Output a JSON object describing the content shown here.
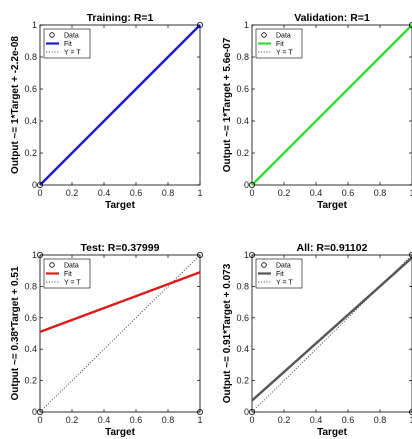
{
  "chart_data": [
    {
      "type": "scatter",
      "title": "Training: R=1",
      "xlabel": "Target",
      "ylabel": "Output ~= 1*Target + -2.2e-08",
      "xlim": [
        0,
        1
      ],
      "ylim": [
        0,
        1
      ],
      "xticks": [
        "0",
        "0.2",
        "0.4",
        "0.6",
        "0.8",
        "1"
      ],
      "yticks": [
        "0",
        "0.2",
        "0.4",
        "0.6",
        "0.8",
        "1"
      ],
      "grid": false,
      "legend_position": "top-left",
      "legend": [
        "Data",
        "Fit",
        "Y = T"
      ],
      "fit_color": "#1a1acc",
      "data_points": [
        {
          "x": 0,
          "y": 0
        },
        {
          "x": 1,
          "y": 1
        }
      ],
      "fit_line": {
        "slope": 1,
        "intercept": -2.2e-08
      },
      "identity_line": {
        "slope": 1,
        "intercept": 0
      }
    },
    {
      "type": "scatter",
      "title": "Validation: R=1",
      "xlabel": "Target",
      "ylabel": "Output ~= 1*Target + 5.6e-07",
      "xlim": [
        0,
        1
      ],
      "ylim": [
        0,
        1
      ],
      "xticks": [
        "0",
        "0.2",
        "0.4",
        "0.6",
        "0.8",
        "1"
      ],
      "yticks": [
        "0",
        "0.2",
        "0.4",
        "0.6",
        "0.8",
        "1"
      ],
      "grid": false,
      "legend_position": "top-left",
      "legend": [
        "Data",
        "Fit",
        "Y = T"
      ],
      "fit_color": "#33dd33",
      "data_points": [
        {
          "x": 0,
          "y": 0
        },
        {
          "x": 1,
          "y": 1
        }
      ],
      "fit_line": {
        "slope": 1,
        "intercept": 5.6e-07
      },
      "identity_line": {
        "slope": 1,
        "intercept": 0
      }
    },
    {
      "type": "scatter",
      "title": "Test: R=0.37999",
      "xlabel": "Target",
      "ylabel": "Output ~= 0.38*Target + 0.51",
      "xlim": [
        0,
        1
      ],
      "ylim": [
        0,
        1
      ],
      "xticks": [
        "0",
        "0.2",
        "0.4",
        "0.6",
        "0.8",
        "1"
      ],
      "yticks": [
        "0",
        "0.2",
        "0.4",
        "0.6",
        "0.8",
        "1"
      ],
      "grid": false,
      "legend_position": "top-left",
      "legend": [
        "Data",
        "Fit",
        "Y = T"
      ],
      "fit_color": "#dd1a1a",
      "data_points": [
        {
          "x": 0,
          "y": 0
        },
        {
          "x": 0,
          "y": 1
        },
        {
          "x": 1,
          "y": 0
        },
        {
          "x": 1,
          "y": 1
        }
      ],
      "fit_line": {
        "slope": 0.38,
        "intercept": 0.51
      },
      "identity_line": {
        "slope": 1,
        "intercept": 0
      }
    },
    {
      "type": "scatter",
      "title": "All: R=0.91102",
      "xlabel": "Target",
      "ylabel": "Output ~= 0.91*Target + 0.073",
      "xlim": [
        0,
        1
      ],
      "ylim": [
        0,
        1
      ],
      "xticks": [
        "0",
        "0.2",
        "0.4",
        "0.6",
        "0.8",
        "1"
      ],
      "yticks": [
        "0",
        "0.2",
        "0.4",
        "0.6",
        "0.8",
        "1"
      ],
      "grid": false,
      "legend_position": "top-left",
      "legend": [
        "Data",
        "Fit",
        "Y = T"
      ],
      "fit_color": "#555555",
      "data_points": [
        {
          "x": 0,
          "y": 0
        },
        {
          "x": 0,
          "y": 1
        },
        {
          "x": 1,
          "y": 0
        },
        {
          "x": 1,
          "y": 1
        }
      ],
      "fit_line": {
        "slope": 0.91,
        "intercept": 0.073
      },
      "identity_line": {
        "slope": 1,
        "intercept": 0
      }
    }
  ]
}
